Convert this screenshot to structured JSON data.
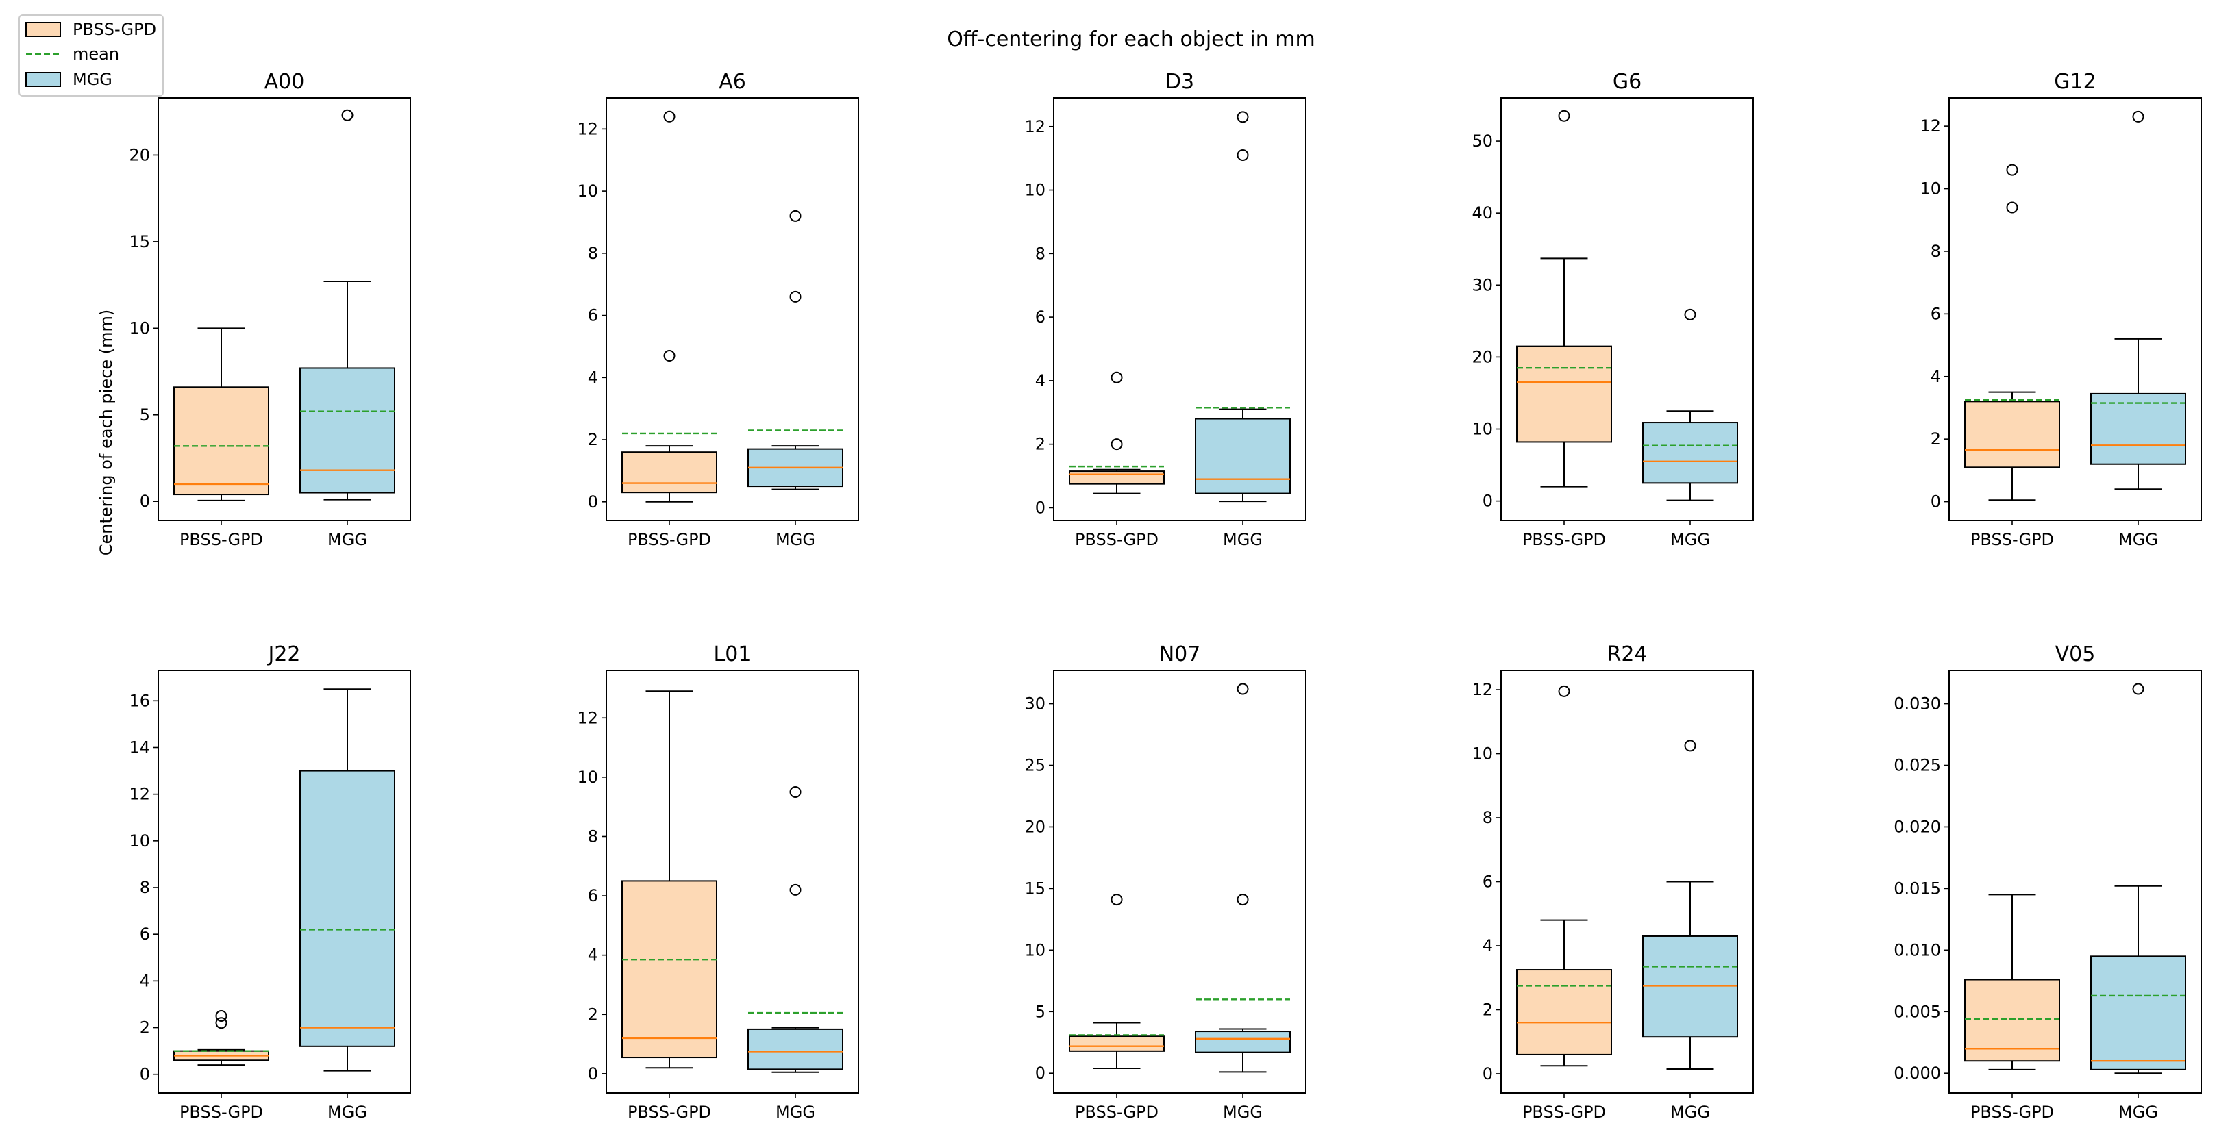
{
  "title": "Off-centering for each object in mm",
  "legend": {
    "placement": "top-left",
    "entries": [
      {
        "label": "PBSS-GPD",
        "kind": "box",
        "color": "#fdd9b5"
      },
      {
        "label": "mean",
        "kind": "line",
        "color": "#2ca02c"
      },
      {
        "label": "MGG",
        "kind": "box",
        "color": "#add8e6"
      }
    ]
  },
  "colors": {
    "pbss": "#fdd9b5",
    "mgg": "#add8e6",
    "median": "#ff7f0e",
    "mean": "#2ca02c",
    "edge": "#000000"
  },
  "chart_data": [
    {
      "type": "box",
      "title": "A00",
      "ylabel": "Centering of each piece (mm)",
      "categories": [
        "PBSS-GPD",
        "MGG"
      ],
      "ylim": [
        -1.1,
        23.3
      ],
      "yticks": [
        0,
        5,
        10,
        15,
        20
      ],
      "yticklabels": [
        "0",
        "5",
        "10",
        "15",
        "20"
      ],
      "series": [
        {
          "name": "PBSS-GPD",
          "whislo": 0.05,
          "q1": 0.4,
          "median": 1.0,
          "q3": 6.6,
          "whishi": 10.0,
          "mean": 3.2,
          "fliers": []
        },
        {
          "name": "MGG",
          "whislo": 0.1,
          "q1": 0.5,
          "median": 1.8,
          "q3": 7.7,
          "whishi": 12.7,
          "mean": 5.2,
          "fliers": [
            22.3
          ]
        }
      ]
    },
    {
      "type": "box",
      "title": "A6",
      "ylabel": "",
      "categories": [
        "PBSS-GPD",
        "MGG"
      ],
      "ylim": [
        -0.6,
        13.0
      ],
      "yticks": [
        0,
        2,
        4,
        6,
        8,
        10,
        12
      ],
      "yticklabels": [
        "0",
        "2",
        "4",
        "6",
        "8",
        "10",
        "12"
      ],
      "series": [
        {
          "name": "PBSS-GPD",
          "whislo": 0.0,
          "q1": 0.3,
          "median": 0.6,
          "q3": 1.6,
          "whishi": 1.8,
          "mean": 2.2,
          "fliers": [
            4.7,
            12.4
          ]
        },
        {
          "name": "MGG",
          "whislo": 0.4,
          "q1": 0.5,
          "median": 1.1,
          "q3": 1.7,
          "whishi": 1.8,
          "mean": 2.3,
          "fliers": [
            6.6,
            9.2
          ]
        }
      ]
    },
    {
      "type": "box",
      "title": "D3",
      "ylabel": "",
      "categories": [
        "PBSS-GPD",
        "MGG"
      ],
      "ylim": [
        -0.4,
        12.9
      ],
      "yticks": [
        0,
        2,
        4,
        6,
        8,
        10,
        12
      ],
      "yticklabels": [
        "0",
        "2",
        "4",
        "6",
        "8",
        "10",
        "12"
      ],
      "series": [
        {
          "name": "PBSS-GPD",
          "whislo": 0.45,
          "q1": 0.75,
          "median": 1.05,
          "q3": 1.15,
          "whishi": 1.2,
          "mean": 1.3,
          "fliers": [
            2.0,
            4.1
          ]
        },
        {
          "name": "MGG",
          "whislo": 0.2,
          "q1": 0.45,
          "median": 0.9,
          "q3": 2.8,
          "whishi": 3.1,
          "mean": 3.15,
          "fliers": [
            11.1,
            12.3
          ]
        }
      ]
    },
    {
      "type": "box",
      "title": "G6",
      "ylabel": "",
      "categories": [
        "PBSS-GPD",
        "MGG"
      ],
      "ylim": [
        -2.7,
        56.0
      ],
      "yticks": [
        0,
        10,
        20,
        30,
        40,
        50
      ],
      "yticklabels": [
        "0",
        "10",
        "20",
        "30",
        "40",
        "50"
      ],
      "series": [
        {
          "name": "PBSS-GPD",
          "whislo": 2.0,
          "q1": 8.2,
          "median": 16.5,
          "q3": 21.5,
          "whishi": 33.7,
          "mean": 18.5,
          "fliers": [
            53.5
          ]
        },
        {
          "name": "MGG",
          "whislo": 0.1,
          "q1": 2.5,
          "median": 5.5,
          "q3": 10.9,
          "whishi": 12.5,
          "mean": 7.7,
          "fliers": [
            25.9
          ]
        }
      ]
    },
    {
      "type": "box",
      "title": "G12",
      "ylabel": "",
      "categories": [
        "PBSS-GPD",
        "MGG"
      ],
      "ylim": [
        -0.6,
        12.9
      ],
      "yticks": [
        0,
        2,
        4,
        6,
        8,
        10,
        12
      ],
      "yticklabels": [
        "0",
        "2",
        "4",
        "6",
        "8",
        "10",
        "12"
      ],
      "series": [
        {
          "name": "PBSS-GPD",
          "whislo": 0.05,
          "q1": 1.1,
          "median": 1.65,
          "q3": 3.2,
          "whishi": 3.5,
          "mean": 3.25,
          "fliers": [
            9.4,
            10.6
          ]
        },
        {
          "name": "MGG",
          "whislo": 0.4,
          "q1": 1.2,
          "median": 1.8,
          "q3": 3.45,
          "whishi": 5.2,
          "mean": 3.15,
          "fliers": [
            12.3
          ]
        }
      ]
    },
    {
      "type": "box",
      "title": "J22",
      "ylabel": "",
      "categories": [
        "PBSS-GPD",
        "MGG"
      ],
      "ylim": [
        -0.8,
        17.3
      ],
      "yticks": [
        0,
        2,
        4,
        6,
        8,
        10,
        12,
        14,
        16
      ],
      "yticklabels": [
        "0",
        "2",
        "4",
        "6",
        "8",
        "10",
        "12",
        "14",
        "16"
      ],
      "series": [
        {
          "name": "PBSS-GPD",
          "whislo": 0.4,
          "q1": 0.6,
          "median": 0.8,
          "q3": 1.0,
          "whishi": 1.05,
          "mean": 1.0,
          "fliers": [
            2.2,
            2.5
          ]
        },
        {
          "name": "MGG",
          "whislo": 0.15,
          "q1": 1.2,
          "median": 2.0,
          "q3": 13.0,
          "whishi": 16.5,
          "mean": 6.2,
          "fliers": []
        }
      ]
    },
    {
      "type": "box",
      "title": "L01",
      "ylabel": "",
      "categories": [
        "PBSS-GPD",
        "MGG"
      ],
      "ylim": [
        -0.65,
        13.6
      ],
      "yticks": [
        0,
        2,
        4,
        6,
        8,
        10,
        12
      ],
      "yticklabels": [
        "0",
        "2",
        "4",
        "6",
        "8",
        "10",
        "12"
      ],
      "series": [
        {
          "name": "PBSS-GPD",
          "whislo": 0.2,
          "q1": 0.55,
          "median": 1.2,
          "q3": 6.5,
          "whishi": 12.9,
          "mean": 3.85,
          "fliers": []
        },
        {
          "name": "MGG",
          "whislo": 0.05,
          "q1": 0.15,
          "median": 0.75,
          "q3": 1.5,
          "whishi": 1.55,
          "mean": 2.05,
          "fliers": [
            6.2,
            9.5
          ]
        }
      ]
    },
    {
      "type": "box",
      "title": "N07",
      "ylabel": "",
      "categories": [
        "PBSS-GPD",
        "MGG"
      ],
      "ylim": [
        -1.6,
        32.7
      ],
      "yticks": [
        0,
        5,
        10,
        15,
        20,
        25,
        30
      ],
      "yticklabels": [
        "0",
        "5",
        "10",
        "15",
        "20",
        "25",
        "30"
      ],
      "series": [
        {
          "name": "PBSS-GPD",
          "whislo": 0.4,
          "q1": 1.8,
          "median": 2.2,
          "q3": 3.0,
          "whishi": 4.1,
          "mean": 3.1,
          "fliers": [
            14.1
          ]
        },
        {
          "name": "MGG",
          "whislo": 0.1,
          "q1": 1.7,
          "median": 2.8,
          "q3": 3.4,
          "whishi": 3.6,
          "mean": 6.0,
          "fliers": [
            14.1,
            31.2
          ]
        }
      ]
    },
    {
      "type": "box",
      "title": "R24",
      "ylabel": "",
      "categories": [
        "PBSS-GPD",
        "MGG"
      ],
      "ylim": [
        -0.6,
        12.6
      ],
      "yticks": [
        0,
        2,
        4,
        6,
        8,
        10,
        12
      ],
      "yticklabels": [
        "0",
        "2",
        "4",
        "6",
        "8",
        "10",
        "12"
      ],
      "series": [
        {
          "name": "PBSS-GPD",
          "whislo": 0.25,
          "q1": 0.6,
          "median": 1.6,
          "q3": 3.25,
          "whishi": 4.8,
          "mean": 2.75,
          "fliers": [
            11.95
          ]
        },
        {
          "name": "MGG",
          "whislo": 0.15,
          "q1": 1.15,
          "median": 2.75,
          "q3": 4.3,
          "whishi": 6.0,
          "mean": 3.35,
          "fliers": [
            10.25
          ]
        }
      ]
    },
    {
      "type": "box",
      "title": "V05",
      "ylabel": "",
      "categories": [
        "PBSS-GPD",
        "MGG"
      ],
      "ylim": [
        -0.0016,
        0.0327
      ],
      "yticks": [
        0,
        0.005,
        0.01,
        0.015,
        0.02,
        0.025,
        0.03
      ],
      "yticklabels": [
        "0.000",
        "0.005",
        "0.010",
        "0.015",
        "0.020",
        "0.025",
        "0.030"
      ],
      "series": [
        {
          "name": "PBSS-GPD",
          "whislo": 0.0003,
          "q1": 0.001,
          "median": 0.002,
          "q3": 0.0076,
          "whishi": 0.0145,
          "mean": 0.0044,
          "fliers": []
        },
        {
          "name": "MGG",
          "whislo": 0.0,
          "q1": 0.0003,
          "median": 0.001,
          "q3": 0.0095,
          "whishi": 0.0152,
          "mean": 0.0063,
          "fliers": [
            0.0312
          ]
        }
      ]
    }
  ]
}
